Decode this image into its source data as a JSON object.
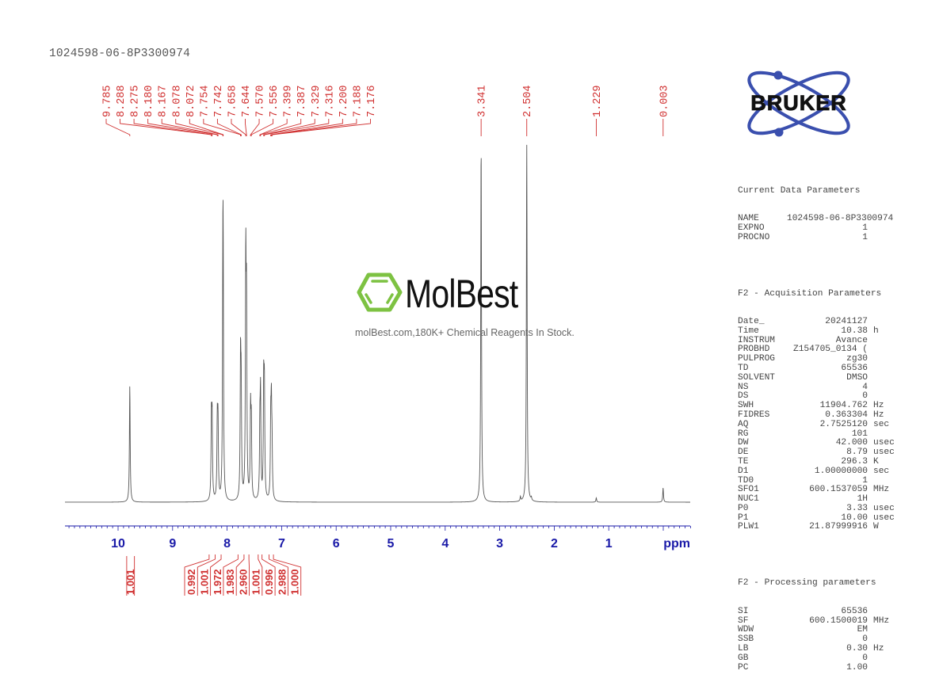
{
  "header": {
    "sample_id": "1024598-06-8P3300974"
  },
  "logo": {
    "brand": "BRUKER",
    "brand_color": "#3a4fae"
  },
  "watermark": {
    "name": "MolBest",
    "tagline": "molBest.com,180K+ Chemical Reagents In Stock.",
    "accent_color": "#7dc242"
  },
  "parameters": {
    "current": {
      "heading": "Current Data Parameters",
      "rows": [
        {
          "key": "NAME",
          "value": "1024598-06-8P3300974",
          "unit": ""
        },
        {
          "key": "EXPNO",
          "value": "1",
          "unit": ""
        },
        {
          "key": "PROCNO",
          "value": "1",
          "unit": ""
        }
      ]
    },
    "acquisition": {
      "heading": "F2 - Acquisition Parameters",
      "rows": [
        {
          "key": "Date_",
          "value": "20241127",
          "unit": ""
        },
        {
          "key": "Time",
          "value": "10.38",
          "unit": "h"
        },
        {
          "key": "INSTRUM",
          "value": "Avance",
          "unit": ""
        },
        {
          "key": "PROBHD",
          "value": "Z154705_0134 (",
          "unit": ""
        },
        {
          "key": "PULPROG",
          "value": "zg30",
          "unit": ""
        },
        {
          "key": "TD",
          "value": "65536",
          "unit": ""
        },
        {
          "key": "SOLVENT",
          "value": "DMSO",
          "unit": ""
        },
        {
          "key": "NS",
          "value": "4",
          "unit": ""
        },
        {
          "key": "DS",
          "value": "0",
          "unit": ""
        },
        {
          "key": "SWH",
          "value": "11904.762",
          "unit": "Hz"
        },
        {
          "key": "FIDRES",
          "value": "0.363304",
          "unit": "Hz"
        },
        {
          "key": "AQ",
          "value": "2.7525120",
          "unit": "sec"
        },
        {
          "key": "RG",
          "value": "101",
          "unit": ""
        },
        {
          "key": "DW",
          "value": "42.000",
          "unit": "usec"
        },
        {
          "key": "DE",
          "value": "8.79",
          "unit": "usec"
        },
        {
          "key": "TE",
          "value": "296.3",
          "unit": "K"
        },
        {
          "key": "D1",
          "value": "1.00000000",
          "unit": "sec"
        },
        {
          "key": "TD0",
          "value": "1",
          "unit": ""
        },
        {
          "key": "SFO1",
          "value": "600.1537059",
          "unit": "MHz"
        },
        {
          "key": "NUC1",
          "value": "1H",
          "unit": ""
        },
        {
          "key": "P0",
          "value": "3.33",
          "unit": "usec"
        },
        {
          "key": "P1",
          "value": "10.00",
          "unit": "usec"
        },
        {
          "key": "PLW1",
          "value": "21.87999916",
          "unit": "W"
        }
      ]
    },
    "processing": {
      "heading": "F2 - Processing parameters",
      "rows": [
        {
          "key": "SI",
          "value": "65536",
          "unit": ""
        },
        {
          "key": "SF",
          "value": "600.1500019",
          "unit": "MHz"
        },
        {
          "key": "WDW",
          "value": "EM",
          "unit": ""
        },
        {
          "key": "SSB",
          "value": "0",
          "unit": ""
        },
        {
          "key": "LB",
          "value": "0.30",
          "unit": "Hz"
        },
        {
          "key": "GB",
          "value": "0",
          "unit": ""
        },
        {
          "key": "PC",
          "value": "1.00",
          "unit": ""
        }
      ]
    }
  },
  "chart_data": {
    "type": "line",
    "title": "1024598-06-8P3300974",
    "xlabel": "ppm",
    "ylabel": "",
    "xlim": [
      11.0,
      -0.5
    ],
    "x_reversed": true,
    "grid": false,
    "x_ticks": [
      10,
      9,
      8,
      7,
      6,
      5,
      4,
      3,
      2,
      1
    ],
    "x_unit_label": "ppm",
    "colors": {
      "axis": "#1a1aa8",
      "peak_labels": "#d03030",
      "spectrum": "#555555"
    },
    "peak_labels_left": [
      "9.785",
      "8.288",
      "8.275",
      "8.180",
      "8.167",
      "8.078",
      "8.072",
      "7.754",
      "7.742",
      "7.658",
      "7.644",
      "7.570",
      "7.556",
      "7.399",
      "7.387",
      "7.329",
      "7.316",
      "7.200",
      "7.188",
      "7.176"
    ],
    "peak_labels_right": [
      "3.341",
      "2.504",
      "1.229",
      "0.003"
    ],
    "peaks": [
      {
        "ppm": 9.785,
        "rel_height": 0.325
      },
      {
        "ppm": 8.288,
        "rel_height": 0.22
      },
      {
        "ppm": 8.275,
        "rel_height": 0.215
      },
      {
        "ppm": 8.18,
        "rel_height": 0.21
      },
      {
        "ppm": 8.167,
        "rel_height": 0.205
      },
      {
        "ppm": 8.078,
        "rel_height": 0.495
      },
      {
        "ppm": 8.072,
        "rel_height": 0.47
      },
      {
        "ppm": 7.754,
        "rel_height": 0.37
      },
      {
        "ppm": 7.742,
        "rel_height": 0.28
      },
      {
        "ppm": 7.658,
        "rel_height": 0.64
      },
      {
        "ppm": 7.644,
        "rel_height": 0.49
      },
      {
        "ppm": 7.57,
        "rel_height": 0.24
      },
      {
        "ppm": 7.556,
        "rel_height": 0.2
      },
      {
        "ppm": 7.399,
        "rel_height": 0.18
      },
      {
        "ppm": 7.387,
        "rel_height": 0.28
      },
      {
        "ppm": 7.329,
        "rel_height": 0.31
      },
      {
        "ppm": 7.316,
        "rel_height": 0.29
      },
      {
        "ppm": 7.2,
        "rel_height": 0.2
      },
      {
        "ppm": 7.188,
        "rel_height": 0.23
      },
      {
        "ppm": 7.176,
        "rel_height": 0.13
      },
      {
        "ppm": 3.341,
        "rel_height": 1.0
      },
      {
        "ppm": 2.504,
        "rel_height": 1.0
      },
      {
        "ppm": 2.62,
        "rel_height": 0.012
      },
      {
        "ppm": 2.42,
        "rel_height": 0.008
      },
      {
        "ppm": 1.229,
        "rel_height": 0.012
      },
      {
        "ppm": 0.003,
        "rel_height": 0.04
      }
    ],
    "integrals": [
      {
        "from": 9.9,
        "to": 9.7,
        "value": "1.001"
      },
      {
        "from": 8.33,
        "to": 8.23,
        "value": "0.992"
      },
      {
        "from": 8.22,
        "to": 8.12,
        "value": "1.001"
      },
      {
        "from": 8.11,
        "to": 8.03,
        "value": "1.972"
      },
      {
        "from": 7.8,
        "to": 7.7,
        "value": "1.983"
      },
      {
        "from": 7.69,
        "to": 7.6,
        "value": "2.960"
      },
      {
        "from": 7.6,
        "to": 7.52,
        "value": "1.001"
      },
      {
        "from": 7.43,
        "to": 7.37,
        "value": "0.996"
      },
      {
        "from": 7.36,
        "to": 7.29,
        "value": "2.988"
      },
      {
        "from": 7.23,
        "to": 7.15,
        "value": "1.000"
      }
    ]
  }
}
